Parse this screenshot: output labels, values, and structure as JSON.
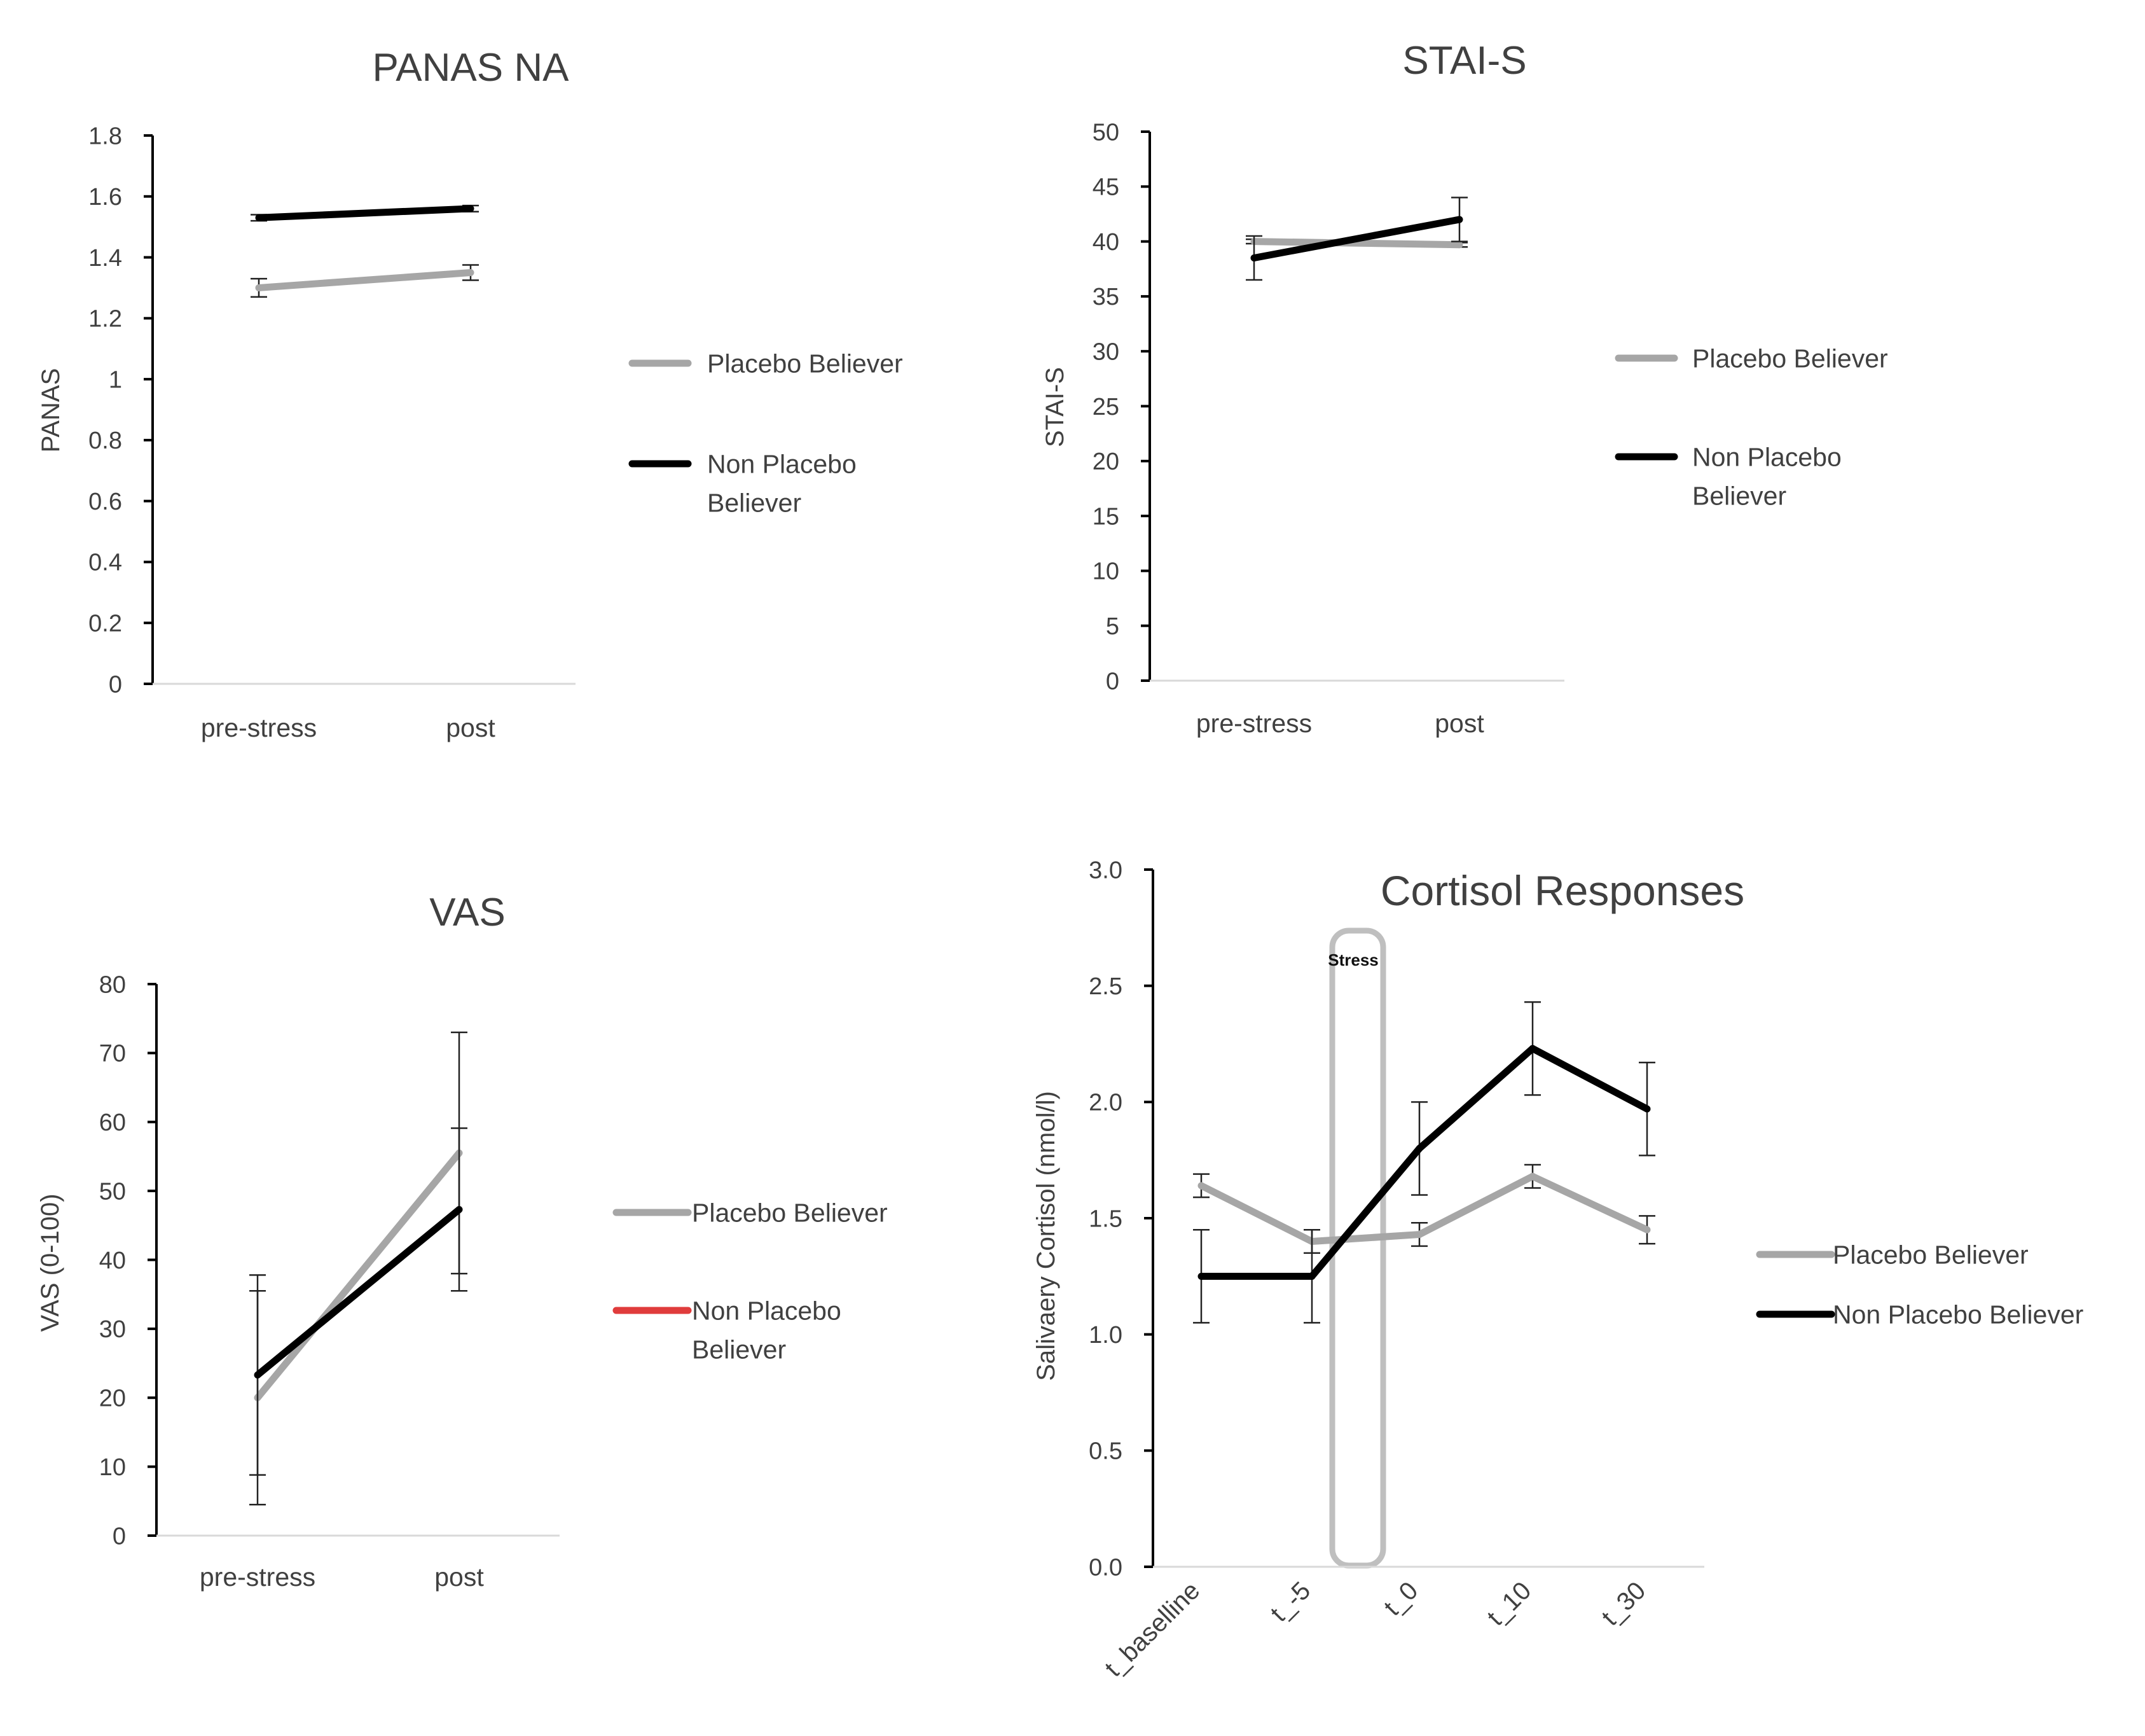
{
  "colors": {
    "placebo": "#a6a6a6",
    "non_placebo": "#000000",
    "non_placebo_vas_legend": "#e03c3c",
    "axis": "#000000",
    "text": "#404040",
    "stress_box": "#bfbfbf"
  },
  "chart_data": [
    {
      "id": "panas",
      "type": "line",
      "title": "PANAS NA",
      "xlabel": "",
      "ylabel": "PANAS",
      "categories": [
        "pre-stress",
        "post"
      ],
      "ylim": [
        0,
        1.8
      ],
      "yticks": [
        0,
        0.2,
        0.4,
        0.6,
        0.8,
        1,
        1.2,
        1.4,
        1.6,
        1.8
      ],
      "ytick_labels": [
        "0",
        "0.2",
        "0.4",
        "0.6",
        "0.8",
        "1",
        "1.2",
        "1.4",
        "1.6",
        "1.8"
      ],
      "grid": false,
      "legend_position": "right",
      "series": [
        {
          "key": "placebo",
          "name": "Placebo Believer",
          "legend_lines": [
            "Placebo Believer"
          ],
          "values": [
            1.3,
            1.35
          ],
          "errors": [
            0.03,
            0.025
          ]
        },
        {
          "key": "non_placebo",
          "name": "Non Placebo Believer",
          "legend_lines": [
            "Non Placebo",
            "Believer"
          ],
          "values": [
            1.53,
            1.56
          ],
          "errors": [
            0.01,
            0.01
          ]
        }
      ]
    },
    {
      "id": "stai",
      "type": "line",
      "title": "STAI-S",
      "xlabel": "",
      "ylabel": "STAI-S",
      "categories": [
        "pre-stress",
        "post"
      ],
      "ylim": [
        0,
        50
      ],
      "yticks": [
        0,
        5,
        10,
        15,
        20,
        25,
        30,
        35,
        40,
        45,
        50
      ],
      "ytick_labels": [
        "0",
        "5",
        "10",
        "15",
        "20",
        "25",
        "30",
        "35",
        "40",
        "45",
        "50"
      ],
      "grid": false,
      "legend_position": "right",
      "series": [
        {
          "key": "placebo",
          "name": "Placebo Believer",
          "legend_lines": [
            "Placebo Believer"
          ],
          "values": [
            40.0,
            39.7
          ],
          "errors": [
            0.2,
            0.2
          ]
        },
        {
          "key": "non_placebo",
          "name": "Non Placebo Believer",
          "legend_lines": [
            "Non Placebo",
            "Believer"
          ],
          "values": [
            38.5,
            42.0
          ],
          "errors": [
            2.0,
            2.0
          ]
        }
      ]
    },
    {
      "id": "vas",
      "type": "line",
      "title": "VAS",
      "xlabel": "",
      "ylabel": "VAS (0-100)",
      "categories": [
        "pre-stress",
        "post"
      ],
      "ylim": [
        0,
        80
      ],
      "yticks": [
        0,
        10,
        20,
        30,
        40,
        50,
        60,
        70,
        80
      ],
      "ytick_labels": [
        "0",
        "10",
        "20",
        "30",
        "40",
        "50",
        "60",
        "70",
        "80"
      ],
      "grid": false,
      "legend_position": "right",
      "series": [
        {
          "key": "placebo",
          "name": "Placebo Believer",
          "legend_lines": [
            "Placebo Believer"
          ],
          "values": [
            20.0,
            55.5
          ],
          "errors": [
            15.5,
            17.5
          ]
        },
        {
          "key": "non_placebo",
          "legend_color_key": "non_placebo_vas_legend",
          "name": "Non Placebo Believer",
          "legend_lines": [
            "Non Placebo",
            "Believer"
          ],
          "values": [
            23.3,
            47.3
          ],
          "errors": [
            14.5,
            11.8
          ]
        }
      ]
    },
    {
      "id": "cortisol",
      "type": "line",
      "title": "Cortisol Responses",
      "xlabel": "",
      "ylabel": "Salivaery Cortisol (nmol/l)",
      "categories": [
        "t_baselline",
        "t_-5",
        "t_0",
        "t_10",
        "t_30"
      ],
      "ylim": [
        0,
        3.0
      ],
      "yticks": [
        0,
        0.5,
        1.0,
        1.5,
        2.0,
        2.5,
        3.0
      ],
      "ytick_labels": [
        "0.0",
        "0.5",
        "1.0",
        "1.5",
        "2.0",
        "2.5",
        "3.0"
      ],
      "grid": false,
      "legend_position": "right",
      "annotation": "Stress",
      "series": [
        {
          "key": "placebo",
          "name": "Placebo Believer",
          "legend_lines": [
            "Placebo Believer"
          ],
          "values": [
            1.64,
            1.4,
            1.43,
            1.68,
            1.45
          ],
          "errors": [
            0.05,
            0.05,
            0.05,
            0.05,
            0.06
          ]
        },
        {
          "key": "non_placebo",
          "name": "Non Placebo Believer",
          "legend_lines": [
            "Non Placebo Believer"
          ],
          "values": [
            1.25,
            1.25,
            1.8,
            2.23,
            1.97
          ],
          "errors": [
            0.2,
            0.2,
            0.2,
            0.2,
            0.2
          ]
        }
      ]
    }
  ]
}
